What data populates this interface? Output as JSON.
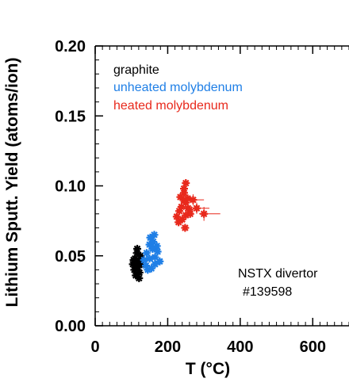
{
  "chart_data": {
    "type": "scatter",
    "xlabel": "T (°C)",
    "ylabel": "Lithium Sputt. Yield (atoms/ion)",
    "xlim": [
      0,
      700
    ],
    "ylim": [
      0.0,
      0.2
    ],
    "x_ticks": [
      "0",
      "200",
      "400",
      "600"
    ],
    "x_tick_values": [
      0,
      200,
      400,
      600
    ],
    "y_ticks": [
      "0.00",
      "0.05",
      "0.10",
      "0.15",
      "0.20"
    ],
    "y_tick_values": [
      0.0,
      0.05,
      0.1,
      0.15,
      0.2
    ],
    "legend": {
      "placement": "top-left",
      "entries": [
        {
          "label": "graphite",
          "color": "#000000"
        },
        {
          "label": "unheated molybdenum",
          "color": "#1f7fe6"
        },
        {
          "label": "heated molybdenum",
          "color": "#e8291c"
        }
      ]
    },
    "annotation": [
      "NSTX divertor",
      "#139598"
    ],
    "series": [
      {
        "name": "graphite",
        "color": "#000000",
        "x": [
          104,
          110,
          115,
          120,
          125,
          108,
          118,
          128,
          112,
          122,
          106,
          116,
          126,
          113,
          121
        ],
        "y": [
          0.044,
          0.048,
          0.052,
          0.046,
          0.05,
          0.04,
          0.042,
          0.044,
          0.036,
          0.038,
          0.047,
          0.055,
          0.047,
          0.043,
          0.034
        ]
      },
      {
        "name": "unheated molybdenum",
        "color": "#1f7fe6",
        "x": [
          135,
          142,
          150,
          158,
          165,
          172,
          178,
          140,
          150,
          160,
          170,
          145,
          155,
          165,
          152,
          163
        ],
        "y": [
          0.047,
          0.052,
          0.058,
          0.055,
          0.049,
          0.053,
          0.046,
          0.043,
          0.048,
          0.06,
          0.057,
          0.04,
          0.041,
          0.044,
          0.063,
          0.065
        ]
      },
      {
        "name": "heated molybdenum",
        "color": "#e8291c",
        "x": [
          225,
          232,
          238,
          244,
          250,
          256,
          262,
          230,
          240,
          250,
          260,
          235,
          245,
          255,
          245,
          250,
          248,
          280,
          300,
          270
        ],
        "y": [
          0.078,
          0.082,
          0.085,
          0.09,
          0.088,
          0.084,
          0.08,
          0.074,
          0.076,
          0.079,
          0.083,
          0.092,
          0.095,
          0.091,
          0.098,
          0.102,
          0.07,
          0.084,
          0.08,
          0.09
        ],
        "x_error": [
          0,
          0,
          0,
          0,
          0,
          0,
          0,
          0,
          0,
          0,
          0,
          0,
          0,
          0,
          0,
          0,
          0,
          35,
          45,
          30
        ],
        "y_error": [
          0,
          0,
          0,
          0,
          0,
          0,
          0,
          0,
          0,
          0,
          0,
          0,
          0,
          0,
          0,
          0,
          0,
          0.004,
          0.005,
          0.004
        ]
      }
    ]
  }
}
